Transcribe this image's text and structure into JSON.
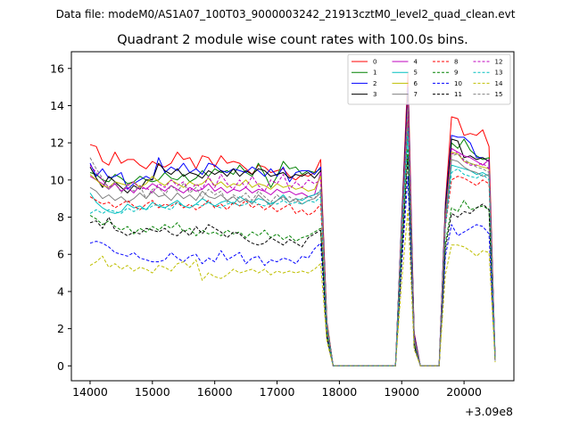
{
  "figure": {
    "suptitle": "Data file: modeM0/AS1A07_100T03_9000003242_21913cztM0_level2_quad_clean.evt"
  },
  "chart_data": {
    "type": "line",
    "title": "Quadrant 2 module wise count rates with 100.0s bins.",
    "xlabel": "",
    "ylabel": "",
    "x_offset_label": "+3.09e8",
    "xlim": [
      13700,
      20800
    ],
    "ylim": [
      -0.8,
      16.9
    ],
    "xticks": [
      14000,
      15000,
      16000,
      17000,
      18000,
      19000,
      20000
    ],
    "xtick_labels": [
      "14000",
      "15000",
      "16000",
      "17000",
      "18000",
      "19000",
      "20000"
    ],
    "yticks": [
      0,
      2,
      4,
      6,
      8,
      10,
      12,
      14,
      16
    ],
    "ytick_labels": [
      "0",
      "2",
      "4",
      "6",
      "8",
      "10",
      "12",
      "14",
      "16"
    ],
    "grid": false,
    "legend_position": "top-right",
    "legend_columns": 4,
    "x": [
      14000,
      14100,
      14200,
      14300,
      14400,
      14500,
      14600,
      14700,
      14800,
      14900,
      15000,
      15100,
      15200,
      15300,
      15400,
      15500,
      15600,
      15700,
      15800,
      15900,
      16000,
      16100,
      16200,
      16300,
      16400,
      16500,
      16600,
      16700,
      16800,
      16900,
      17000,
      17100,
      17200,
      17300,
      17400,
      17500,
      17600,
      17700,
      17800,
      17900,
      18000,
      18100,
      18200,
      18300,
      18400,
      18500,
      18600,
      18700,
      18800,
      18900,
      19000,
      19100,
      19200,
      19300,
      19400,
      19500,
      19600,
      19700,
      19800,
      19900,
      20000,
      20100,
      20200,
      20300,
      20400,
      20500
    ],
    "series": [
      {
        "name": "0",
        "color": "#ff0000",
        "dash": "solid",
        "values": [
          11.9,
          11.8,
          11.0,
          10.8,
          11.5,
          10.9,
          11.1,
          11.1,
          10.8,
          10.6,
          11.0,
          10.8,
          10.7,
          10.9,
          11.5,
          11.1,
          11.2,
          10.6,
          11.3,
          11.2,
          10.7,
          11.3,
          10.9,
          11.0,
          10.9,
          10.6,
          10.3,
          10.8,
          10.7,
          10.4,
          10.5,
          10.6,
          10.2,
          10.0,
          10.3,
          10.2,
          10.4,
          11.1,
          2.4,
          0.0,
          0.0,
          0.0,
          0.0,
          0.0,
          0.0,
          0.0,
          0.0,
          0.0,
          0.0,
          0.0,
          8.0,
          15.8,
          1.8,
          0.0,
          0.0,
          0.0,
          0.0,
          8.8,
          13.4,
          13.3,
          12.4,
          12.5,
          12.4,
          12.7,
          11.8,
          0.4
        ]
      },
      {
        "name": "1",
        "color": "#008000",
        "dash": "solid",
        "values": [
          10.4,
          10.3,
          10.0,
          9.9,
          10.3,
          10.1,
          9.8,
          9.9,
          10.2,
          10.0,
          9.9,
          10.0,
          10.4,
          10.1,
          10.0,
          10.3,
          9.9,
          10.1,
          10.5,
          10.2,
          10.6,
          10.4,
          10.5,
          10.3,
          10.8,
          10.4,
          10.2,
          10.9,
          10.3,
          9.6,
          10.2,
          11.0,
          10.6,
          10.7,
          10.3,
          10.5,
          10.4,
          10.6,
          2.3,
          0.0,
          0.0,
          0.0,
          0.0,
          0.0,
          0.0,
          0.0,
          0.0,
          0.0,
          0.0,
          0.0,
          7.8,
          14.3,
          1.6,
          0.0,
          0.0,
          0.0,
          0.0,
          8.3,
          12.0,
          11.7,
          12.2,
          11.6,
          11.3,
          11.1,
          11.2,
          0.3
        ]
      },
      {
        "name": "2",
        "color": "#0000ff",
        "dash": "solid",
        "values": [
          10.9,
          10.2,
          10.6,
          10.1,
          10.2,
          10.4,
          9.5,
          9.8,
          10.0,
          10.2,
          10.0,
          11.2,
          10.4,
          10.7,
          10.5,
          10.9,
          10.4,
          10.6,
          10.3,
          10.9,
          10.8,
          10.5,
          10.4,
          10.6,
          10.5,
          10.4,
          10.7,
          10.5,
          10.2,
          10.6,
          10.2,
          10.7,
          9.9,
          10.4,
          10.5,
          10.5,
          10.3,
          10.7,
          2.3,
          0.0,
          0.0,
          0.0,
          0.0,
          0.0,
          0.0,
          0.0,
          0.0,
          0.0,
          0.0,
          0.0,
          7.9,
          15.0,
          1.7,
          0.0,
          0.0,
          0.0,
          0.0,
          8.6,
          12.4,
          12.3,
          12.3,
          12.0,
          11.2,
          11.2,
          11.0,
          0.4
        ]
      },
      {
        "name": "3",
        "color": "#000000",
        "dash": "solid",
        "values": [
          10.7,
          10.1,
          9.6,
          10.2,
          9.9,
          9.6,
          9.3,
          9.7,
          9.5,
          10.0,
          10.0,
          10.9,
          10.5,
          10.3,
          10.6,
          10.2,
          10.4,
          10.3,
          10.1,
          10.5,
          10.3,
          10.5,
          10.2,
          10.6,
          10.2,
          10.5,
          10.3,
          10.6,
          10.5,
          10.2,
          10.3,
          10.4,
          10.1,
          10.3,
          10.2,
          10.4,
          10.1,
          10.5,
          2.2,
          0.0,
          0.0,
          0.0,
          0.0,
          0.0,
          0.0,
          0.0,
          0.0,
          0.0,
          0.0,
          0.0,
          7.7,
          14.6,
          1.6,
          0.0,
          0.0,
          0.0,
          0.0,
          8.4,
          12.2,
          12.1,
          11.2,
          11.3,
          11.1,
          11.2,
          11.0,
          0.3
        ]
      },
      {
        "name": "4",
        "color": "#bf00bf",
        "dash": "solid",
        "values": [
          10.2,
          10.0,
          9.8,
          9.5,
          9.8,
          9.4,
          9.6,
          9.3,
          9.7,
          9.5,
          9.8,
          9.6,
          9.4,
          9.7,
          9.5,
          9.3,
          9.6,
          9.4,
          9.5,
          9.8,
          9.4,
          9.6,
          9.3,
          9.5,
          9.4,
          9.6,
          9.3,
          9.5,
          9.4,
          9.2,
          9.5,
          9.3,
          9.4,
          9.2,
          9.3,
          9.1,
          9.2,
          10.4,
          2.1,
          0.0,
          0.0,
          0.0,
          0.0,
          0.0,
          0.0,
          0.0,
          0.0,
          0.0,
          0.0,
          0.0,
          7.4,
          14.2,
          1.5,
          0.0,
          0.0,
          0.0,
          0.0,
          8.0,
          11.7,
          11.5,
          11.3,
          11.2,
          11.0,
          10.8,
          11.1,
          0.3
        ]
      },
      {
        "name": "5",
        "color": "#00bfbf",
        "dash": "solid",
        "values": [
          9.3,
          8.8,
          8.5,
          8.3,
          8.2,
          8.3,
          8.7,
          8.5,
          8.6,
          8.4,
          8.8,
          8.6,
          8.5,
          8.7,
          8.9,
          8.6,
          8.5,
          8.7,
          9.0,
          8.8,
          8.6,
          8.8,
          8.9,
          8.7,
          9.1,
          8.9,
          8.8,
          9.0,
          8.9,
          8.7,
          8.9,
          9.2,
          8.8,
          9.0,
          8.9,
          9.1,
          9.2,
          9.4,
          2.0,
          0.0,
          0.0,
          0.0,
          0.0,
          0.0,
          0.0,
          0.0,
          0.0,
          0.0,
          0.0,
          0.0,
          7.0,
          12.5,
          1.4,
          0.0,
          0.0,
          0.0,
          0.0,
          7.6,
          10.8,
          10.7,
          10.6,
          10.5,
          10.3,
          10.4,
          10.2,
          0.3
        ]
      },
      {
        "name": "6",
        "color": "#bfbf00",
        "dash": "solid",
        "values": [
          10.3,
          10.0,
          9.7,
          9.6,
          9.9,
          9.8,
          9.7,
          9.9,
          9.6,
          9.8,
          10.2,
          9.9,
          9.7,
          10.0,
          9.8,
          9.6,
          9.9,
          9.7,
          9.8,
          10.1,
          9.7,
          9.9,
          9.6,
          9.8,
          9.7,
          10.0,
          9.6,
          9.8,
          9.7,
          9.5,
          9.8,
          9.6,
          9.7,
          9.5,
          9.6,
          9.4,
          9.5,
          10.2,
          2.2,
          0.0,
          0.0,
          0.0,
          0.0,
          0.0,
          0.0,
          0.0,
          0.0,
          0.0,
          0.0,
          0.0,
          7.5,
          14.0,
          1.5,
          0.0,
          0.0,
          0.0,
          0.0,
          8.1,
          11.5,
          11.4,
          11.0,
          10.9,
          10.8,
          10.7,
          10.6,
          0.3
        ]
      },
      {
        "name": "7",
        "color": "#808080",
        "dash": "solid",
        "values": [
          9.6,
          9.4,
          9.0,
          9.2,
          8.9,
          9.1,
          8.8,
          9.0,
          9.3,
          9.0,
          9.4,
          9.1,
          9.2,
          8.9,
          9.3,
          9.0,
          9.2,
          8.9,
          9.4,
          9.1,
          9.0,
          9.2,
          8.9,
          9.1,
          8.8,
          9.0,
          8.7,
          9.2,
          8.9,
          8.6,
          8.9,
          9.1,
          8.8,
          9.0,
          8.7,
          8.9,
          9.0,
          9.3,
          2.0,
          0.0,
          0.0,
          0.0,
          0.0,
          0.0,
          0.0,
          0.0,
          0.0,
          0.0,
          0.0,
          0.0,
          7.2,
          13.5,
          1.4,
          0.0,
          0.0,
          0.0,
          0.0,
          7.8,
          11.1,
          11.0,
          10.7,
          10.5,
          10.4,
          10.2,
          10.3,
          0.3
        ]
      },
      {
        "name": "8",
        "color": "#ff0000",
        "dash": "dashed",
        "values": [
          9.1,
          8.9,
          8.7,
          8.8,
          8.5,
          8.7,
          8.9,
          8.6,
          8.4,
          8.7,
          8.9,
          8.5,
          8.7,
          8.6,
          8.8,
          8.5,
          8.7,
          8.4,
          8.6,
          8.9,
          8.5,
          8.7,
          8.4,
          8.8,
          8.6,
          8.9,
          8.5,
          8.7,
          8.4,
          8.6,
          8.3,
          8.5,
          8.7,
          8.2,
          8.4,
          8.1,
          8.3,
          8.7,
          1.9,
          0.0,
          0.0,
          0.0,
          0.0,
          0.0,
          0.0,
          0.0,
          0.0,
          0.0,
          0.0,
          0.0,
          6.9,
          13.3,
          1.3,
          0.0,
          0.0,
          0.0,
          0.0,
          7.5,
          10.0,
          10.2,
          10.1,
          9.9,
          9.7,
          10.0,
          9.8,
          0.3
        ]
      },
      {
        "name": "9",
        "color": "#008000",
        "dash": "dashed",
        "values": [
          8.1,
          7.9,
          7.6,
          7.8,
          7.5,
          7.3,
          7.5,
          7.1,
          7.4,
          7.2,
          7.5,
          7.3,
          7.6,
          7.4,
          7.7,
          7.2,
          7.4,
          7.0,
          7.3,
          7.1,
          7.2,
          7.0,
          7.3,
          7.1,
          7.2,
          6.9,
          7.2,
          7.0,
          7.3,
          6.9,
          7.1,
          6.8,
          7.0,
          6.7,
          6.9,
          7.0,
          7.2,
          7.4,
          1.7,
          0.0,
          0.0,
          0.0,
          0.0,
          0.0,
          0.0,
          0.0,
          0.0,
          0.0,
          0.0,
          0.0,
          6.2,
          11.7,
          1.2,
          0.0,
          0.0,
          0.0,
          0.0,
          6.6,
          8.5,
          8.3,
          8.9,
          8.4,
          8.5,
          8.6,
          8.4,
          0.3
        ]
      },
      {
        "name": "10",
        "color": "#0000ff",
        "dash": "dashed",
        "values": [
          6.6,
          6.7,
          6.6,
          6.4,
          6.1,
          6.0,
          5.9,
          6.1,
          5.8,
          5.7,
          5.6,
          5.6,
          5.7,
          6.1,
          5.8,
          5.6,
          5.9,
          6.0,
          5.5,
          5.8,
          5.6,
          6.2,
          5.7,
          5.9,
          6.1,
          5.5,
          5.8,
          5.9,
          5.4,
          5.7,
          5.6,
          5.8,
          5.7,
          5.5,
          5.9,
          5.8,
          6.3,
          6.6,
          1.5,
          0.0,
          0.0,
          0.0,
          0.0,
          0.0,
          0.0,
          0.0,
          0.0,
          0.0,
          0.0,
          0.0,
          5.5,
          10.2,
          1.0,
          0.0,
          0.0,
          0.0,
          0.0,
          5.9,
          7.6,
          7.0,
          7.2,
          7.4,
          7.6,
          7.5,
          7.1,
          0.3
        ]
      },
      {
        "name": "11",
        "color": "#000000",
        "dash": "dashed",
        "values": [
          7.7,
          7.8,
          7.4,
          8.0,
          7.3,
          7.2,
          7.0,
          7.2,
          7.1,
          7.4,
          7.3,
          7.2,
          7.4,
          7.1,
          7.0,
          7.3,
          7.0,
          7.5,
          7.1,
          7.6,
          7.4,
          7.2,
          6.9,
          7.2,
          7.1,
          6.8,
          6.6,
          6.5,
          6.6,
          6.9,
          6.7,
          6.5,
          6.8,
          6.6,
          6.4,
          6.9,
          7.1,
          7.3,
          1.6,
          0.0,
          0.0,
          0.0,
          0.0,
          0.0,
          0.0,
          0.0,
          0.0,
          0.0,
          0.0,
          0.0,
          6.0,
          11.3,
          1.1,
          0.0,
          0.0,
          0.0,
          0.0,
          6.3,
          8.2,
          8.0,
          8.3,
          8.2,
          8.5,
          8.7,
          8.4,
          0.3
        ]
      },
      {
        "name": "12",
        "color": "#bf00bf",
        "dash": "dashed",
        "values": [
          10.8,
          10.4,
          10.0,
          9.6,
          9.8,
          9.4,
          9.7,
          9.9,
          9.5,
          9.6,
          9.3,
          9.8,
          9.6,
          10.0,
          9.7,
          9.9,
          9.4,
          9.8,
          9.5,
          10.2,
          9.6,
          10.3,
          9.8,
          9.5,
          10.0,
          9.6,
          10.2,
          9.7,
          9.4,
          10.0,
          9.8,
          10.3,
          9.5,
          9.9,
          9.6,
          10.0,
          9.8,
          10.0,
          2.1,
          0.0,
          0.0,
          0.0,
          0.0,
          0.0,
          0.0,
          0.0,
          0.0,
          0.0,
          0.0,
          0.0,
          7.4,
          14.1,
          1.5,
          0.0,
          0.0,
          0.0,
          0.0,
          8.0,
          11.4,
          11.5,
          11.0,
          10.8,
          10.8,
          10.9,
          10.6,
          0.3
        ]
      },
      {
        "name": "13",
        "color": "#00bfbf",
        "dash": "dashed",
        "values": [
          8.2,
          8.4,
          8.2,
          8.4,
          8.3,
          8.2,
          8.5,
          8.3,
          8.5,
          8.4,
          8.6,
          8.7,
          8.5,
          8.4,
          8.8,
          8.6,
          8.5,
          8.7,
          8.6,
          8.8,
          8.6,
          8.5,
          8.7,
          8.8,
          8.6,
          8.7,
          8.9,
          8.7,
          8.6,
          8.8,
          8.7,
          8.9,
          8.7,
          8.8,
          8.7,
          8.9,
          8.8,
          9.1,
          2.0,
          0.0,
          0.0,
          0.0,
          0.0,
          0.0,
          0.0,
          0.0,
          0.0,
          0.0,
          0.0,
          0.0,
          7.0,
          12.8,
          1.4,
          0.0,
          0.0,
          0.0,
          0.0,
          7.5,
          10.4,
          10.6,
          10.3,
          10.2,
          10.1,
          10.3,
          10.0,
          0.3
        ]
      },
      {
        "name": "14",
        "color": "#bfbf00",
        "dash": "dashed",
        "values": [
          5.4,
          5.6,
          5.9,
          5.3,
          5.5,
          5.2,
          5.4,
          5.1,
          5.3,
          5.2,
          5.0,
          5.4,
          5.3,
          5.1,
          5.5,
          5.6,
          5.3,
          5.7,
          4.6,
          5.0,
          4.8,
          4.7,
          4.9,
          5.2,
          5.0,
          5.1,
          5.2,
          5.0,
          5.2,
          4.9,
          5.1,
          5.0,
          5.1,
          5.0,
          5.1,
          5.0,
          5.2,
          5.5,
          1.3,
          0.0,
          0.0,
          0.0,
          0.0,
          0.0,
          0.0,
          0.0,
          0.0,
          0.0,
          0.0,
          0.0,
          4.6,
          8.4,
          0.9,
          0.0,
          0.0,
          0.0,
          0.0,
          4.9,
          6.5,
          6.5,
          6.4,
          6.2,
          5.9,
          6.2,
          6.1,
          0.2
        ]
      },
      {
        "name": "15",
        "color": "#808080",
        "dash": "dashed",
        "values": [
          11.2,
          10.6,
          10.1,
          9.5,
          9.9,
          9.3,
          9.8,
          9.4,
          9.7,
          9.0,
          9.5,
          9.6,
          9.2,
          9.7,
          9.4,
          9.8,
          9.3,
          9.6,
          9.0,
          9.5,
          9.2,
          9.4,
          8.8,
          9.2,
          9.0,
          9.3,
          8.9,
          9.4,
          9.1,
          8.8,
          9.2,
          8.9,
          9.1,
          8.8,
          9.0,
          9.1,
          9.0,
          9.5,
          2.0,
          0.0,
          0.0,
          0.0,
          0.0,
          0.0,
          0.0,
          0.0,
          0.0,
          0.0,
          0.0,
          0.0,
          7.2,
          13.9,
          1.4,
          0.0,
          0.0,
          0.0,
          0.0,
          7.8,
          11.3,
          11.4,
          11.1,
          10.9,
          10.7,
          10.6,
          10.4,
          0.3
        ]
      }
    ]
  }
}
